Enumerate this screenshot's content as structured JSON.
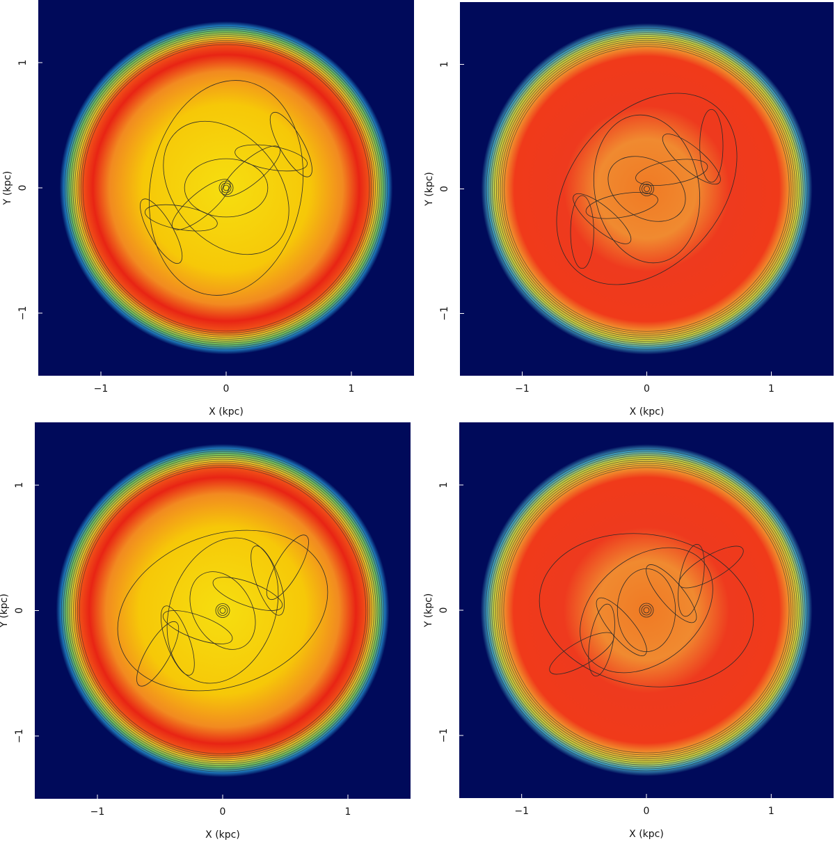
{
  "chart_data": [
    {
      "type": "contour",
      "xlabel": "X  (kpc)",
      "ylabel": "Y  (kpc)",
      "xlim": [
        -1.5,
        1.5
      ],
      "ylim": [
        -1.5,
        1.5
      ],
      "xticks": [
        {
          "value": -1,
          "label": "−1"
        },
        0,
        1
      ],
      "yticks": [
        {
          "value": -1,
          "label": "−1"
        },
        0,
        1
      ]
    },
    {
      "type": "contour",
      "xlabel": "X  (kpc)",
      "ylabel": "Y  (kpc)",
      "xlim": [
        -1.5,
        1.5
      ],
      "ylim": [
        -1.5,
        1.5
      ],
      "xticks": [
        {
          "value": -1,
          "label": "−1"
        },
        0,
        1
      ],
      "yticks": [
        {
          "value": -1,
          "label": "−1"
        },
        0,
        1
      ]
    },
    {
      "type": "contour",
      "xlabel": "X  (kpc)",
      "ylabel": "Y  (kpc)",
      "xlim": [
        -1.5,
        1.5
      ],
      "ylim": [
        -1.5,
        1.5
      ],
      "xticks": [
        {
          "value": -1,
          "label": "−1"
        },
        0,
        1
      ],
      "yticks": [
        {
          "value": -1,
          "label": "−1"
        },
        0,
        1
      ]
    },
    {
      "type": "contour",
      "xlabel": "X  (kpc)",
      "ylabel": "Y  (kpc)",
      "xlim": [
        -1.5,
        1.5
      ],
      "ylim": [
        -1.5,
        1.5
      ],
      "xticks": [
        {
          "value": -1,
          "label": "−1"
        },
        0,
        1
      ],
      "yticks": [
        {
          "value": -1,
          "label": "−1"
        },
        0,
        1
      ]
    }
  ]
}
